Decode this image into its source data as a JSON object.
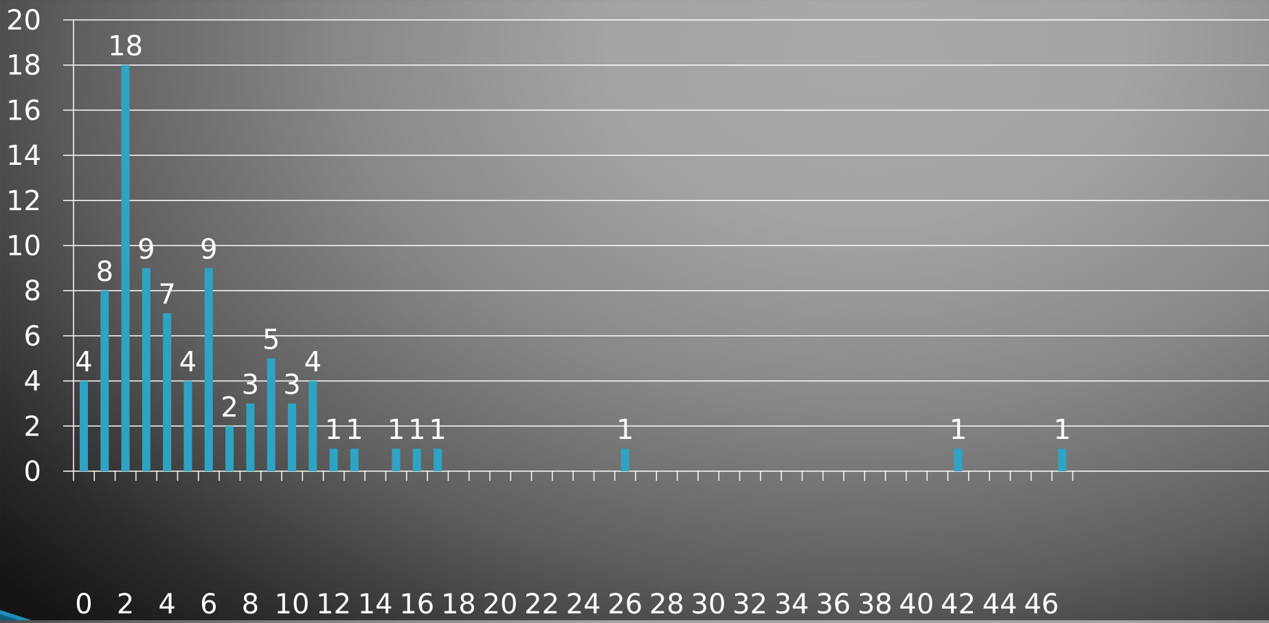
{
  "colors": {
    "bar": "#2ea3c4",
    "grid": "#ffffff",
    "text": "#ffffff",
    "accent": "#1f8fb5"
  },
  "chart_data": {
    "type": "bar",
    "title": "",
    "xlabel": "",
    "ylabel": "",
    "x": [
      0,
      1,
      2,
      3,
      4,
      5,
      6,
      7,
      8,
      9,
      10,
      11,
      12,
      13,
      14,
      15,
      16,
      17,
      18,
      19,
      20,
      21,
      22,
      23,
      24,
      25,
      26,
      27,
      28,
      29,
      30,
      31,
      32,
      33,
      34,
      35,
      36,
      37,
      38,
      39,
      40,
      41,
      42,
      43,
      44,
      45,
      46,
      47
    ],
    "values": [
      4,
      8,
      18,
      9,
      7,
      4,
      9,
      2,
      3,
      5,
      3,
      4,
      1,
      1,
      0,
      1,
      1,
      1,
      0,
      0,
      0,
      0,
      0,
      0,
      0,
      0,
      1,
      0,
      0,
      0,
      0,
      0,
      0,
      0,
      0,
      0,
      0,
      0,
      0,
      0,
      0,
      0,
      1,
      0,
      0,
      0,
      0,
      1
    ],
    "data_labels": [
      "4",
      "8",
      "18",
      "9",
      "7",
      "4",
      "9",
      "2",
      "3",
      "5",
      "3",
      "4",
      "1",
      "1",
      "",
      "1",
      "1",
      "1",
      "",
      "",
      "",
      "",
      "",
      "",
      "",
      "",
      "1",
      "",
      "",
      "",
      "",
      "",
      "",
      "",
      "",
      "",
      "",
      "",
      "",
      "",
      "",
      "",
      "1",
      "",
      "",
      "",
      "",
      "1"
    ],
    "x_tick_labels": [
      "0",
      "2",
      "4",
      "6",
      "8",
      "10",
      "12",
      "14",
      "16",
      "18",
      "20",
      "22",
      "24",
      "26",
      "28",
      "30",
      "32",
      "34",
      "36",
      "38",
      "40",
      "42",
      "44",
      "46"
    ],
    "y_tick_labels": [
      "0",
      "2",
      "4",
      "6",
      "8",
      "10",
      "12",
      "14",
      "16",
      "18",
      "20"
    ],
    "ylim": [
      0,
      20
    ],
    "y_step": 2,
    "grid": true,
    "legend": "none"
  }
}
